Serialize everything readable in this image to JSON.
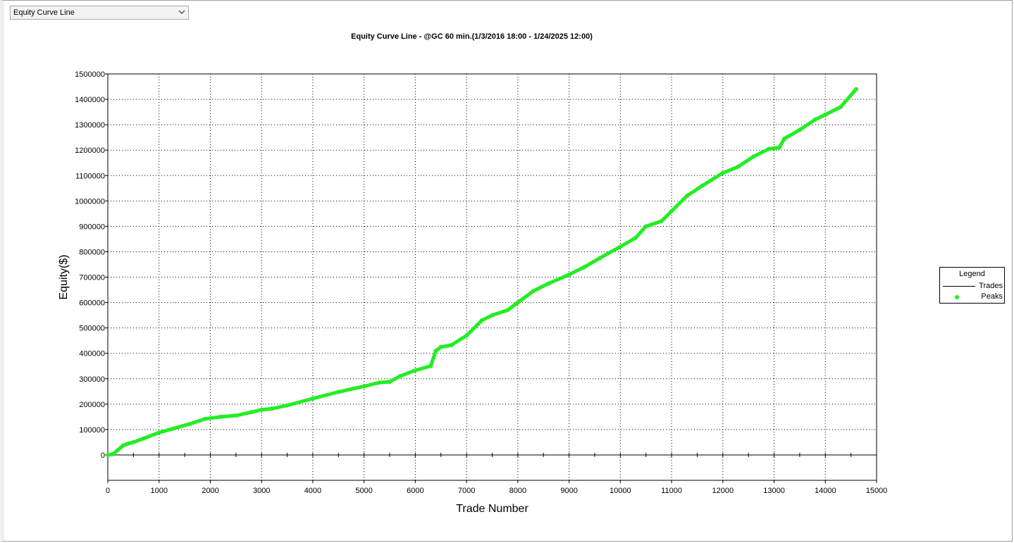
{
  "dropdown": {
    "selected": "Equity Curve Line"
  },
  "colors": {
    "peaks": "#22ee22",
    "trades": "#000000",
    "grid": "#000000"
  },
  "icons": {
    "dropdown": "chevron-down-icon"
  },
  "legend": {
    "title": "Legend",
    "items": [
      "Trades",
      "Peaks"
    ]
  },
  "chart_data": {
    "type": "line",
    "title": "Equity Curve Line - @GC 60 min.(1/3/2016 18:00 - 1/24/2025 12:00)",
    "xlabel": "Trade Number",
    "ylabel": "Equity($)",
    "xlim": [
      0,
      15000
    ],
    "ylim": [
      -100000,
      1500000
    ],
    "x_ticks": [
      0,
      1000,
      2000,
      3000,
      4000,
      5000,
      6000,
      7000,
      8000,
      9000,
      10000,
      11000,
      12000,
      13000,
      14000,
      15000
    ],
    "y_ticks": [
      0,
      100000,
      200000,
      300000,
      400000,
      500000,
      600000,
      700000,
      800000,
      900000,
      1000000,
      1100000,
      1200000,
      1300000,
      1400000,
      1500000
    ],
    "grid": true,
    "legend_position": "right",
    "series": [
      {
        "name": "Trades",
        "x": [
          0,
          100,
          200,
          300,
          400,
          500,
          700,
          1000,
          1300,
          1600,
          1900,
          2200,
          2500,
          2800,
          3000,
          3200,
          3500,
          4000,
          4500,
          5000,
          5300,
          5500,
          5700,
          6000,
          6300,
          6400,
          6500,
          6700,
          7000,
          7300,
          7500,
          7800,
          8000,
          8300,
          8600,
          9000,
          9300,
          9600,
          10000,
          10300,
          10500,
          10800,
          11000,
          11300,
          11600,
          12000,
          12300,
          12600,
          12900,
          13100,
          13200,
          13500,
          13800,
          14000,
          14300,
          14600
        ],
        "values": [
          0,
          3000,
          20000,
          37000,
          45000,
          50000,
          65000,
          88000,
          105000,
          122000,
          142000,
          150000,
          155000,
          168000,
          178000,
          182000,
          195000,
          222000,
          248000,
          270000,
          285000,
          288000,
          310000,
          333000,
          350000,
          410000,
          425000,
          432000,
          470000,
          530000,
          550000,
          570000,
          600000,
          645000,
          675000,
          710000,
          740000,
          775000,
          820000,
          855000,
          900000,
          920000,
          960000,
          1020000,
          1060000,
          1110000,
          1135000,
          1175000,
          1205000,
          1210000,
          1245000,
          1280000,
          1320000,
          1340000,
          1370000,
          1440000
        ]
      },
      {
        "name": "Peaks",
        "x": [
          0,
          100,
          200,
          300,
          400,
          500,
          700,
          1000,
          1300,
          1600,
          1900,
          2200,
          2500,
          2800,
          3000,
          3200,
          3500,
          4000,
          4500,
          5000,
          5300,
          5500,
          5700,
          6000,
          6300,
          6400,
          6500,
          6700,
          7000,
          7300,
          7500,
          7800,
          8000,
          8300,
          8600,
          9000,
          9300,
          9600,
          10000,
          10300,
          10500,
          10800,
          11000,
          11300,
          11600,
          12000,
          12300,
          12600,
          12900,
          13100,
          13200,
          13500,
          13800,
          14000,
          14300,
          14600
        ],
        "values": [
          0,
          3000,
          20000,
          37000,
          45000,
          50000,
          65000,
          88000,
          105000,
          122000,
          142000,
          150000,
          155000,
          168000,
          178000,
          182000,
          195000,
          222000,
          248000,
          270000,
          285000,
          288000,
          310000,
          333000,
          350000,
          410000,
          425000,
          432000,
          470000,
          530000,
          550000,
          570000,
          600000,
          645000,
          675000,
          710000,
          740000,
          775000,
          820000,
          855000,
          900000,
          920000,
          960000,
          1020000,
          1060000,
          1110000,
          1135000,
          1175000,
          1205000,
          1210000,
          1245000,
          1280000,
          1320000,
          1340000,
          1370000,
          1440000
        ]
      }
    ]
  }
}
